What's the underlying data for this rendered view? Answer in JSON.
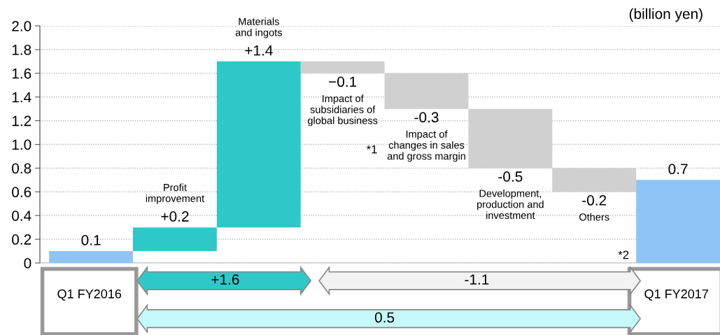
{
  "chart_data": {
    "type": "bar",
    "categories": [
      "Q1 FY2016",
      "Profit\nimprovement",
      "Materials\nand ingots",
      "Impact of\nsubsidiaries of\nglobal business",
      "Impact of\nchanges in sales\nand gross margin",
      "Development,\nproduction and\ninvestment",
      "Others",
      "Q1 FY2017"
    ],
    "values": [
      0.1,
      0.2,
      1.4,
      -0.1,
      -0.3,
      -0.5,
      -0.2,
      0.7
    ],
    "base": [
      0,
      0.1,
      0.3,
      1.7,
      1.6,
      1.3,
      0.8,
      0
    ],
    "colors": [
      "#8ec5f7",
      "#2fc8c8",
      "#2fc8c8",
      "#d0d0d0",
      "#d0d0d0",
      "#d0d0d0",
      "#d0d0d0",
      "#8ec5f7"
    ],
    "value_labels": [
      "0.1",
      "+0.2",
      "+1.4",
      "−0.1",
      "-0.3",
      "-0.5",
      "-0.2",
      "0.7"
    ],
    "ylim": [
      0,
      2.0
    ],
    "yticks": [
      0,
      0.2,
      0.4,
      0.6,
      0.8,
      {
        "value": 1.0,
        "label": "1.0"
      },
      1.2,
      1.4,
      1.6,
      1.8,
      {
        "value": 2.0,
        "label": "2.0"
      }
    ],
    "grid": "y",
    "annotations": [
      "(billion yen)",
      "*1",
      "*2",
      "+1.6",
      "-1.1",
      "0.5"
    ]
  }
}
